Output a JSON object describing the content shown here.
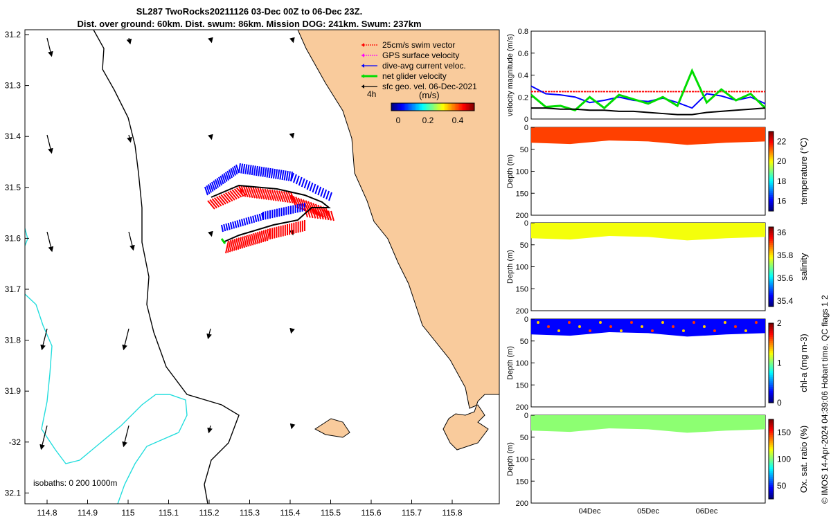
{
  "title": {
    "line1": "SL287 TwoRocks20211126 03-Dec 00Z to 06-Dec 23Z.",
    "line2": "Dist. over ground: 60km. Dist. swum: 86km. Mission DOG: 241km. Swum: 237km"
  },
  "map": {
    "lon_ticks": [
      "114.8",
      "114.9",
      "115",
      "115.1",
      "115.2",
      "115.3",
      "115.4",
      "115.5",
      "115.6",
      "115.7",
      "115.8"
    ],
    "lat_ticks": [
      "31.2",
      "31.3",
      "31.4",
      "31.5",
      "31.6",
      "31.7",
      "31.8",
      "31.9",
      "-32",
      "32.1"
    ],
    "isobaths_label": "isobaths: 0   200  1000m",
    "legend": [
      {
        "label": "25cm/s swim vector",
        "color": "#ff0000"
      },
      {
        "label": "GPS surface velocity",
        "color": "#ff00ff"
      },
      {
        "label": "dive-avg current veloc.",
        "color": "#0000ff"
      },
      {
        "label": "net glider velocity",
        "color": "#00dd00"
      },
      {
        "label": "sfc geo. vel. 06-Dec-2021",
        "color": "#000000"
      }
    ],
    "time_label": "4h",
    "colorbar_title": "(m/s)",
    "colorbar_ticks": [
      "0",
      "0.2",
      "0.4"
    ],
    "land_color": "#f9cb9c",
    "isobath_shallow_color": "#000000",
    "isobath_deep_color": "#22dddd"
  },
  "chart_data": [
    {
      "type": "line",
      "title": "",
      "ylabel": "velocity magnitude (m/s)",
      "ylim": [
        0,
        0.8
      ],
      "yticks": [
        "0",
        "0.2",
        "0.4",
        "0.6",
        "0.8"
      ],
      "x_days": [
        0,
        0.25,
        0.5,
        0.75,
        1.0,
        1.25,
        1.5,
        1.75,
        2.0,
        2.25,
        2.5,
        2.75,
        3.0,
        3.25,
        3.5,
        3.75,
        4.0
      ],
      "series": [
        {
          "name": "swim vector",
          "color": "#ff0000",
          "values": [
            0.25,
            0.25,
            0.25,
            0.25,
            0.25,
            0.25,
            0.25,
            0.25,
            0.25,
            0.25,
            0.25,
            0.25,
            0.25,
            0.25,
            0.25,
            0.25,
            0.25
          ]
        },
        {
          "name": "dive-avg current",
          "color": "#0000ff",
          "values": [
            0.3,
            0.23,
            0.22,
            0.2,
            0.15,
            0.17,
            0.2,
            0.17,
            0.16,
            0.19,
            0.15,
            0.1,
            0.23,
            0.21,
            0.17,
            0.2,
            0.14
          ]
        },
        {
          "name": "net glider velocity",
          "color": "#00dd00",
          "values": [
            0.22,
            0.11,
            0.12,
            0.08,
            0.2,
            0.1,
            0.22,
            0.18,
            0.14,
            0.2,
            0.12,
            0.44,
            0.15,
            0.27,
            0.17,
            0.23,
            0.1
          ]
        },
        {
          "name": "sfc geo. vel.",
          "color": "#000000",
          "values": [
            0.1,
            0.1,
            0.09,
            0.09,
            0.08,
            0.08,
            0.07,
            0.07,
            0.06,
            0.05,
            0.04,
            0.04,
            0.06,
            0.07,
            0.08,
            0.09,
            0.1
          ]
        }
      ]
    },
    {
      "type": "heatmap",
      "ylabel": "Depth (m)",
      "colorbar_label": "temperature (°C)",
      "ylim": [
        200,
        0
      ],
      "yticks": [
        "0",
        "50",
        "100",
        "150",
        "200"
      ],
      "colorbar_ticks": [
        "16",
        "18",
        "20",
        "22"
      ],
      "clim": [
        15,
        23
      ],
      "surface_value": 21.5,
      "profile_depth_m": [
        35,
        38,
        30,
        32,
        40,
        35,
        32
      ]
    },
    {
      "type": "heatmap",
      "ylabel": "Depth (m)",
      "colorbar_label": "salinity",
      "ylim": [
        200,
        0
      ],
      "yticks": [
        "0",
        "50",
        "100",
        "150",
        "200"
      ],
      "colorbar_ticks": [
        "35.4",
        "35.6",
        "35.8",
        "36"
      ],
      "clim": [
        35.35,
        36.05
      ],
      "surface_value": 35.78,
      "profile_depth_m": [
        35,
        38,
        30,
        32,
        40,
        35,
        32
      ]
    },
    {
      "type": "heatmap",
      "ylabel": "Depth (m)",
      "colorbar_label": "chl-a (mg m-3)",
      "ylim": [
        200,
        0
      ],
      "yticks": [
        "0",
        "50",
        "100",
        "150",
        "200"
      ],
      "colorbar_ticks": [
        "0",
        "1",
        "2"
      ],
      "clim": [
        0,
        2
      ],
      "surface_value": 0.25,
      "profile_depth_m": [
        35,
        38,
        30,
        32,
        40,
        35,
        32
      ]
    },
    {
      "type": "heatmap",
      "ylabel": "Depth (m)",
      "colorbar_label": "Ox. sat. ratio (%)",
      "ylim": [
        200,
        0
      ],
      "yticks": [
        "0",
        "50",
        "100",
        "150",
        "200"
      ],
      "colorbar_ticks": [
        "50",
        "100",
        "150"
      ],
      "clim": [
        25,
        175
      ],
      "surface_value": 102,
      "profile_depth_m": [
        35,
        38,
        30,
        32,
        40,
        35,
        32
      ]
    }
  ],
  "time_axis": {
    "ticks": [
      "04Dec",
      "05Dec",
      "06Dec"
    ]
  },
  "side_note": "© IMOS 14-Apr-2024 04:39:06 Hobart time. QC flags 1  2"
}
